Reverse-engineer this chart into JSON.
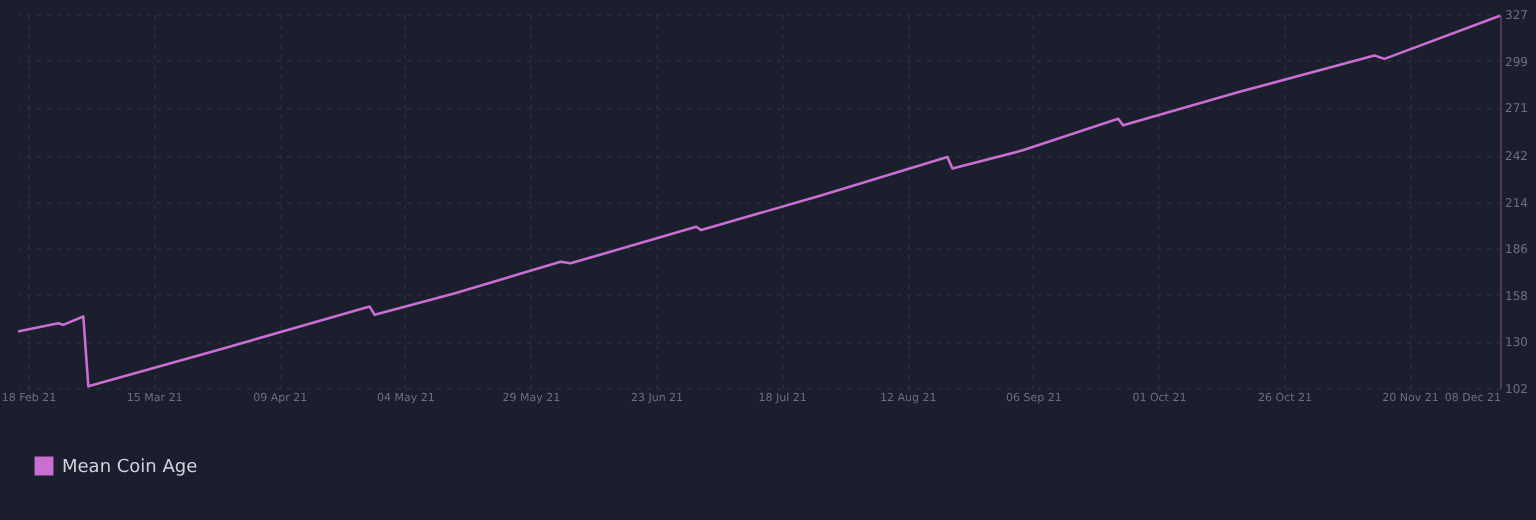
{
  "chart_data": {
    "type": "line",
    "x": [
      "2021-02-16",
      "2021-02-24",
      "2021-02-25",
      "2021-03-01",
      "2021-03-02",
      "2021-03-28",
      "2021-04-27",
      "2021-04-28",
      "2021-05-14",
      "2021-06-04",
      "2021-06-06",
      "2021-07-01",
      "2021-07-02",
      "2021-07-26",
      "2021-08-20",
      "2021-08-21",
      "2021-09-04",
      "2021-09-23",
      "2021-09-24",
      "2021-10-17",
      "2021-11-13",
      "2021-11-15",
      "2021-12-08"
    ],
    "series": [
      {
        "name": "Mean Coin Age",
        "color": "#c86fd1",
        "values": [
          136,
          141,
          140,
          145,
          103,
          125,
          151,
          146,
          159,
          178,
          177,
          199,
          197,
          218,
          241,
          234,
          245,
          264,
          260,
          280,
          302,
          300,
          326
        ]
      }
    ],
    "xlim": [
      "2021-02-16",
      "2021-12-08"
    ],
    "xticks": [
      {
        "value": "2021-02-18",
        "label": "18 Feb 21"
      },
      {
        "value": "2021-03-15",
        "label": "15 Mar 21"
      },
      {
        "value": "2021-04-09",
        "label": "09 Apr 21"
      },
      {
        "value": "2021-05-04",
        "label": "04 May 21"
      },
      {
        "value": "2021-05-29",
        "label": "29 May 21"
      },
      {
        "value": "2021-06-23",
        "label": "23 Jun 21"
      },
      {
        "value": "2021-07-18",
        "label": "18 Jul 21"
      },
      {
        "value": "2021-08-12",
        "label": "12 Aug 21"
      },
      {
        "value": "2021-09-06",
        "label": "06 Sep 21"
      },
      {
        "value": "2021-10-01",
        "label": "01 Oct 21"
      },
      {
        "value": "2021-10-26",
        "label": "26 Oct 21"
      },
      {
        "value": "2021-11-20",
        "label": "20 Nov 21"
      },
      {
        "value": "2021-12-08",
        "label": "08 Dec 21"
      }
    ],
    "ylim": [
      102,
      327
    ],
    "yticks": [
      102,
      130,
      158,
      186,
      214,
      242,
      271,
      299,
      327
    ],
    "grid": true,
    "legend": "bottom",
    "marker": "none",
    "line_style": "solid"
  }
}
